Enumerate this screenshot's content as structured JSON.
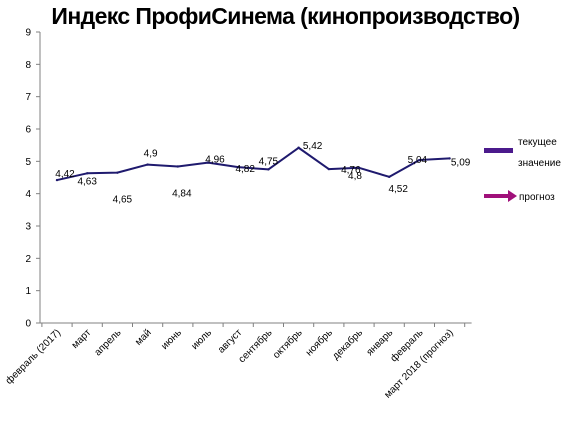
{
  "chart_data": {
    "type": "line",
    "title": "Индекс ПрофиСинема (кинопроизводство)",
    "xlabel": "",
    "ylabel": "",
    "categories": [
      "февраль (2017)",
      "март",
      "апрель",
      "май",
      "июнь",
      "июль",
      "август",
      "сентябрь",
      "октябрь",
      "ноябрь",
      "декабрь",
      "январь",
      "февраль",
      "март 2018 (прогноз)"
    ],
    "ylim": [
      0,
      9
    ],
    "yticks": [
      "0",
      "1",
      "2",
      "3",
      "4",
      "5",
      "6",
      "7",
      "8",
      "9"
    ],
    "series": [
      {
        "name": "текущее значение",
        "color": "#1F1A6E",
        "values": [
          4.42,
          4.63,
          4.65,
          4.9,
          4.84,
          4.96,
          4.82,
          4.75,
          5.42,
          4.76,
          4.8,
          4.52,
          5.04,
          5.09
        ],
        "data_labels": [
          "4,42",
          "4,63",
          "4,65",
          "4,9",
          "4,84",
          "4,96",
          "4,82",
          "4,75",
          "5,42",
          "4,76",
          "4,8",
          "4,52",
          "5,04",
          "5,09"
        ]
      }
    ],
    "legend": {
      "placement": "right",
      "items": [
        {
          "label_line1": "текущее",
          "label_line2": "значение",
          "color": "#4B1A8C",
          "marker": "bar"
        },
        {
          "label_line1": "прогноз",
          "label_line2": "",
          "color": "#A0107A",
          "marker": "arrow"
        }
      ]
    },
    "grid": false
  }
}
